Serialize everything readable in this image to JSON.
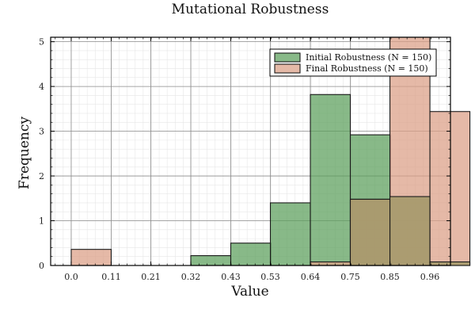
{
  "chart_data": {
    "type": "bar",
    "title": "Mutational Robustness",
    "xlabel": "Value",
    "ylabel": "Frequency",
    "xlim": [
      -0.055,
      1.015
    ],
    "ylim": [
      0,
      5.1
    ],
    "x_ticks": [
      "0.0",
      "0.11",
      "0.21",
      "0.32",
      "0.43",
      "0.53",
      "0.64",
      "0.75",
      "0.85",
      "0.96"
    ],
    "x_tick_values": [
      0.0,
      0.107,
      0.213,
      0.32,
      0.427,
      0.533,
      0.64,
      0.747,
      0.853,
      0.96
    ],
    "y_ticks": [
      0,
      1,
      2,
      3,
      4,
      5
    ],
    "grid": true,
    "legend_position": "top-right",
    "bin_width": 0.107,
    "series": [
      {
        "name": "Initial Robustness (N = 150)",
        "color": "#5a9e5a",
        "bins": [
          {
            "x0": 0.32,
            "value": 0.22
          },
          {
            "x0": 0.427,
            "value": 0.5
          },
          {
            "x0": 0.533,
            "value": 1.4
          },
          {
            "x0": 0.64,
            "value": 3.82
          },
          {
            "x0": 0.747,
            "value": 2.92
          }
        ]
      },
      {
        "name": "Final Robustness (N = 150)",
        "color": "#db9e85",
        "bins": [
          {
            "x0": 0.0,
            "value": 0.36
          },
          {
            "x0": 0.64,
            "value": 0.08
          },
          {
            "x0": 0.747,
            "value": 1.48
          },
          {
            "x0": 0.853,
            "value": 5.1
          },
          {
            "x0": 0.96,
            "value": 3.44
          }
        ]
      },
      {
        "name": "",
        "color": "#a89a6e",
        "bins": [
          {
            "x0": 0.747,
            "value": 1.48
          },
          {
            "x0": 0.853,
            "value": 1.54
          },
          {
            "x0": 0.96,
            "value": 0.08
          }
        ]
      }
    ]
  }
}
